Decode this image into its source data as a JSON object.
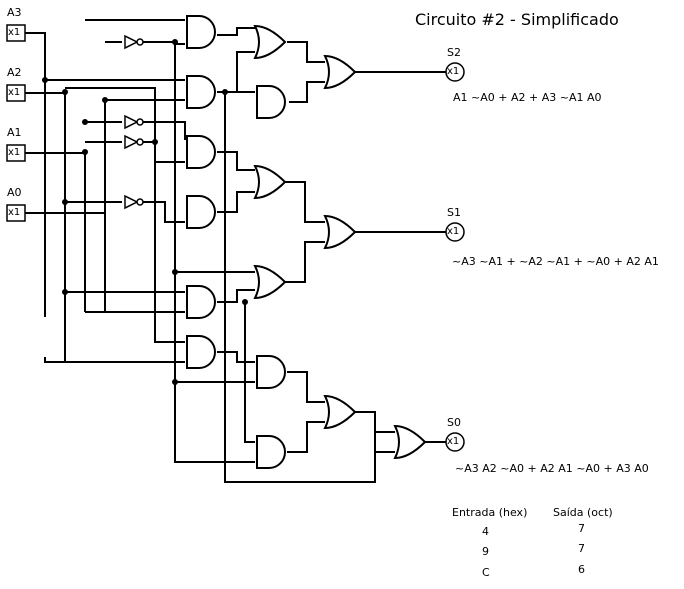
{
  "title": "Circuito #2 - Simplificado",
  "inputs": [
    {
      "name": "A3",
      "pin": "x1"
    },
    {
      "name": "A2",
      "pin": "x1"
    },
    {
      "name": "A1",
      "pin": "x1"
    },
    {
      "name": "A0",
      "pin": "x1"
    }
  ],
  "outputs": [
    {
      "name": "S2",
      "pin": "x1",
      "expression": "A1 ~A0 + A2 + A3 ~A1 A0"
    },
    {
      "name": "S1",
      "pin": "x1",
      "expression": "~A3 ~A1 + ~A2 ~A1 + ~A0 + A2 A1"
    },
    {
      "name": "S0",
      "pin": "x1",
      "expression": "~A3 A2 ~A0 + A2 A1 ~A0 + A3 A0"
    }
  ],
  "table": {
    "headers": [
      "Entrada (hex)",
      "Saída (oct)"
    ],
    "rows": [
      [
        "4",
        "7"
      ],
      [
        "9",
        "7"
      ],
      [
        "C",
        "6"
      ]
    ]
  }
}
